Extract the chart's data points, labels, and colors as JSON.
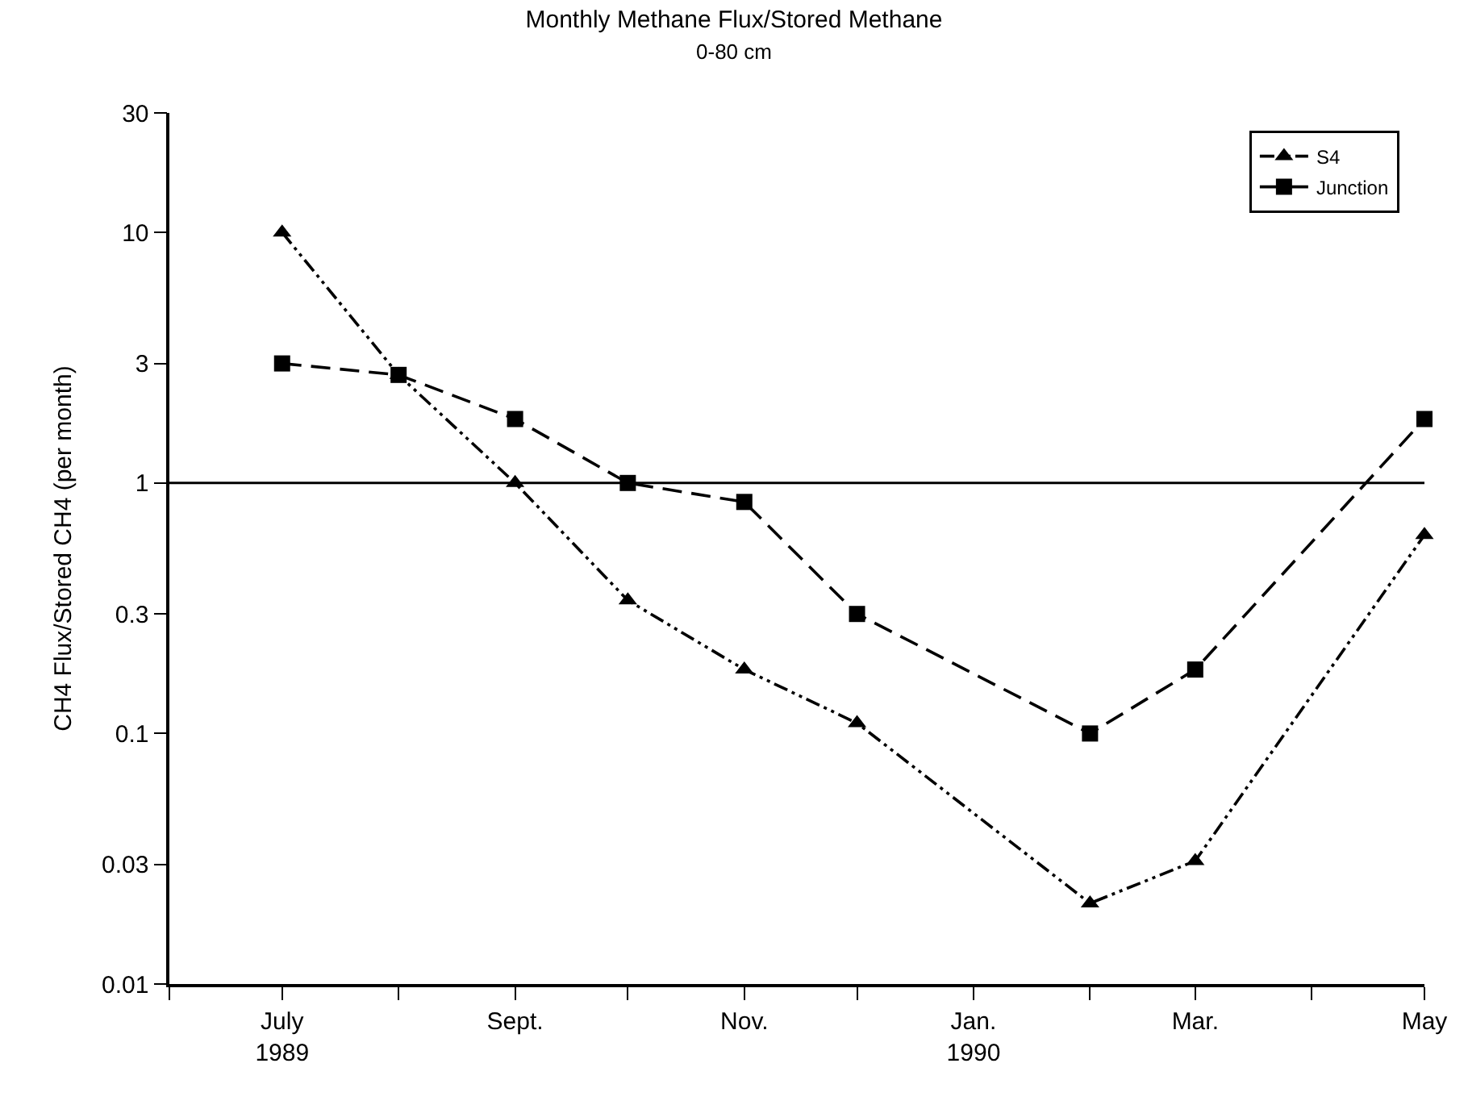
{
  "chart_data": {
    "type": "line",
    "title": "Monthly Methane Flux/Stored Methane",
    "subtitle": "0-80 cm",
    "ylabel": "CH4 Flux/Stored CH4 (per month)",
    "x": [
      "1989-07",
      "1989-08",
      "1989-09",
      "1989-10",
      "1989-11",
      "1989-12",
      "1990-02",
      "1990-03",
      "1990-05"
    ],
    "series": [
      {
        "name": "S4",
        "color": "#000000",
        "marker": "triangle",
        "line_style": "dotted",
        "values": [
          10,
          2.7,
          1.0,
          0.34,
          0.18,
          0.11,
          0.021,
          0.031,
          0.62
        ]
      },
      {
        "name": "Junction",
        "color": "#000000",
        "marker": "square",
        "line_style": "dashed",
        "values": [
          3.0,
          2.7,
          1.8,
          1.0,
          0.84,
          0.3,
          0.1,
          0.18,
          1.8
        ]
      }
    ],
    "log": "y",
    "ylim": [
      0.01,
      30
    ],
    "yticks": [
      0.01,
      0.03,
      0.1,
      0.3,
      1,
      3,
      10,
      30
    ],
    "xlim": [
      "1989-06",
      "1990-05"
    ],
    "xticks": [
      {
        "value": "1989-06",
        "label": null
      },
      {
        "value": "1989-07",
        "label": "July\n1989"
      },
      {
        "value": "1989-08",
        "label": null
      },
      {
        "value": "1989-09",
        "label": "Sept."
      },
      {
        "value": "1989-10",
        "label": null
      },
      {
        "value": "1989-11",
        "label": "Nov."
      },
      {
        "value": "1989-12",
        "label": null
      },
      {
        "value": "1990-01",
        "label": "Jan.\n1990"
      },
      {
        "value": "1990-02",
        "label": null
      },
      {
        "value": "1990-03",
        "label": "Mar."
      },
      {
        "value": "1990-04",
        "label": null
      },
      {
        "value": "1990-05",
        "label": "May"
      }
    ],
    "ref_lines": [
      {
        "axis": "y",
        "value": 1,
        "label": null,
        "color": "#000000",
        "line_style": "solid"
      }
    ],
    "legend": "top right"
  }
}
